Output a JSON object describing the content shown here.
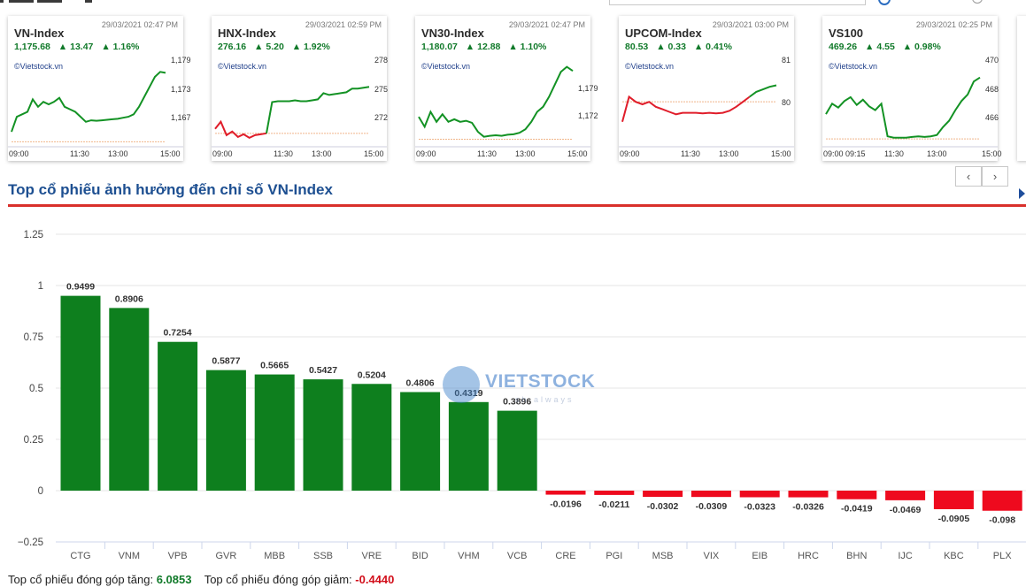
{
  "index_cards": [
    {
      "name": "VN-Index",
      "time": "29/03/2021 02:47 PM",
      "value": "1,175.68",
      "change": "▲ 13.47",
      "pct": "▲ 1.16%",
      "credit": "©Vietstock.vn",
      "y_ticks": [
        "1,179",
        "1,173",
        "1,167"
      ],
      "x_ticks": [
        "09:00",
        "11:30",
        "13:00",
        "15:00"
      ],
      "series": [
        1166,
        1169,
        1169.5,
        1170,
        1172.5,
        1171,
        1172,
        1171.5,
        1172,
        1172.8,
        1171,
        1170.5,
        1170,
        1169,
        1168,
        1168.3,
        1168.2,
        1168.3,
        1168.4,
        1168.5,
        1168.6,
        1168.8,
        1169,
        1169.5,
        1171,
        1173,
        1175,
        1177,
        1178,
        1177.8
      ],
      "ref": 1164,
      "min": 1163,
      "max": 1180
    },
    {
      "name": "HNX-Index",
      "time": "29/03/2021 02:59 PM",
      "value": "276.16",
      "change": "▲ 5.20",
      "pct": "▲ 1.92%",
      "credit": "©Vietstock.vn",
      "y_ticks": [
        "278",
        "275",
        "272"
      ],
      "x_ticks": [
        "09:00",
        "11:30",
        "13:00",
        "15:00"
      ],
      "series": [
        271.5,
        272.3,
        270.8,
        271.2,
        270.6,
        270.9,
        270.5,
        270.8,
        270.9,
        271.0,
        274.5,
        274.6,
        274.6,
        274.6,
        274.7,
        274.6,
        274.6,
        274.7,
        274.8,
        275.5,
        275.3,
        275.4,
        275.5,
        275.6,
        276.0,
        276.0,
        276.1,
        276.2
      ],
      "red_until": 9,
      "ref": 271.0,
      "min": 269.5,
      "max": 279.0
    },
    {
      "name": "VN30-Index",
      "time": "29/03/2021 02:47 PM",
      "value": "1,180.07",
      "change": "▲ 12.88",
      "pct": "▲ 1.10%",
      "credit": "©Vietstock.vn",
      "y_ticks": [
        "1,179",
        "1,172"
      ],
      "x_ticks": [
        "09:00",
        "11:30",
        "13:00",
        "15:00"
      ],
      "series": [
        1171,
        1169,
        1172,
        1170,
        1171.5,
        1170,
        1170.5,
        1170,
        1170.2,
        1169.8,
        1168,
        1167,
        1167.2,
        1167.3,
        1167.2,
        1167.4,
        1167.5,
        1167.8,
        1168.5,
        1170,
        1172,
        1173,
        1175,
        1177.5,
        1180,
        1181,
        1180.2
      ],
      "ref": 1166.5,
      "min": 1165,
      "max": 1182
    },
    {
      "name": "UPCOM-Index",
      "time": "29/03/2021 03:00 PM",
      "value": "80.53",
      "change": "▲ 0.33",
      "pct": "▲ 0.41%",
      "credit": "©Vietstock.vn",
      "y_ticks": [
        "81",
        "80"
      ],
      "x_ticks": [
        "09:00",
        "11:30",
        "13:00",
        "15:00"
      ],
      "series": [
        79.8,
        80.3,
        80.2,
        80.15,
        80.2,
        80.1,
        80.05,
        80.0,
        79.95,
        79.98,
        79.98,
        79.98,
        79.97,
        79.98,
        79.97,
        79.98,
        80.02,
        80.1,
        80.2,
        80.3,
        80.4,
        80.45,
        80.5,
        80.53
      ],
      "red_until": 19,
      "ref": 80.2,
      "min": 79.3,
      "max": 81.0
    },
    {
      "name": "VS100",
      "time": "29/03/2021 02:25 PM",
      "value": "469.26",
      "change": "▲ 4.55",
      "pct": "▲ 0.98%",
      "credit": "©Vietstock.vn",
      "y_ticks": [
        "470",
        "468",
        "466"
      ],
      "x_ticks": [
        "09:00",
        "09:15",
        "11:30",
        "13:00",
        "15:00"
      ],
      "series": [
        466.5,
        467.3,
        467,
        467.5,
        467.8,
        467.2,
        467.6,
        467.1,
        466.8,
        467.3,
        464.8,
        464.7,
        464.7,
        464.7,
        464.75,
        464.8,
        464.75,
        464.8,
        464.9,
        465.5,
        466,
        466.8,
        467.5,
        468,
        469,
        469.3
      ],
      "ref": 464.6,
      "min": 464.0,
      "max": 470.5
    }
  ],
  "section_title": "Top cổ phiếu ảnh hưởng đến chỉ số VN-Index",
  "nav": {
    "prev": "‹",
    "next": "›"
  },
  "watermark": {
    "text": "VIETSTOCK",
    "sub": "sh always"
  },
  "chart_data": {
    "type": "bar",
    "categories": [
      "CTG",
      "VNM",
      "VPB",
      "GVR",
      "MBB",
      "SSB",
      "VRE",
      "BID",
      "VHM",
      "VCB",
      "CRE",
      "PGI",
      "MSB",
      "VIX",
      "EIB",
      "HRC",
      "BHN",
      "IJC",
      "KBC",
      "PLX"
    ],
    "values": [
      0.9499,
      0.8906,
      0.7254,
      0.5877,
      0.5665,
      0.5427,
      0.5204,
      0.4806,
      0.4319,
      0.3896,
      -0.0196,
      -0.0211,
      -0.0302,
      -0.0309,
      -0.0323,
      -0.0326,
      -0.0419,
      -0.0469,
      -0.0905,
      -0.098
    ],
    "y_ticks": [
      "1.25",
      "1",
      "0.75",
      "0.5",
      "0.25",
      "0",
      "−0.25"
    ],
    "ylim": [
      -0.25,
      1.25
    ],
    "grid": true,
    "positive_color": "#0e7f1e",
    "negative_color": "#ee0a1e"
  },
  "footer": {
    "inc_label": "Top cổ phiếu đóng góp tăng:",
    "inc_value": "6.0853",
    "dec_label": "Top cổ phiếu đóng góp giảm:",
    "dec_value": "-0.4440"
  }
}
